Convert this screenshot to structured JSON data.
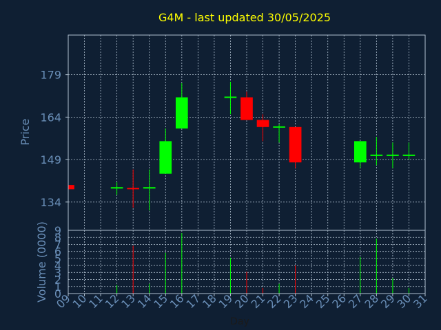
{
  "colors": {
    "background": "#0f1f33",
    "title": "#ffff00",
    "axis_text": "#6a8fb8",
    "frame": "#b0c0d0",
    "grid": "#b0c0d0",
    "up": "#00ff00",
    "down": "#ff0000"
  },
  "chart_data": {
    "type": "candlestick",
    "title": "G4M - last updated 30/05/2025",
    "xlabel": "Day",
    "ylabel": "Price",
    "volume_label": "Volume (0000)",
    "x_ticks": [
      "09",
      "10",
      "11",
      "12",
      "13",
      "14",
      "15",
      "16",
      "17",
      "18",
      "19",
      "20",
      "21",
      "22",
      "23",
      "24",
      "25",
      "26",
      "27",
      "28",
      "29",
      "30",
      "31"
    ],
    "price_ticks": [
      134,
      149,
      164,
      179
    ],
    "price_range": [
      124,
      193
    ],
    "volume_ticks": [
      0,
      1,
      2,
      3,
      4,
      5,
      6,
      7,
      8,
      9
    ],
    "volume_range": [
      0,
      9
    ],
    "grid": true,
    "candles": [
      {
        "day": "09",
        "open": 140,
        "close": 138.5,
        "high": 140,
        "low": 138.5,
        "volume": 0
      },
      {
        "day": "12",
        "open": 139,
        "close": 139,
        "high": 141,
        "low": 136.5,
        "volume": 1.2
      },
      {
        "day": "13",
        "open": 139,
        "close": 138.5,
        "high": 145.5,
        "low": 132,
        "volume": 6.8
      },
      {
        "day": "14",
        "open": 139,
        "close": 139,
        "high": 145.5,
        "low": 131,
        "volume": 1.4
      },
      {
        "day": "15",
        "open": 144,
        "close": 155.5,
        "high": 160,
        "low": 144,
        "volume": 5.8
      },
      {
        "day": "16",
        "open": 160,
        "close": 171,
        "high": 176,
        "low": 160,
        "volume": 8.6
      },
      {
        "day": "19",
        "open": 171,
        "close": 171,
        "high": 176.5,
        "low": 165,
        "volume": 5.1
      },
      {
        "day": "20",
        "open": 171,
        "close": 163,
        "high": 173,
        "low": 163,
        "volume": 3.1
      },
      {
        "day": "21",
        "open": 163,
        "close": 160.5,
        "high": 165,
        "low": 155.5,
        "volume": 0.8
      },
      {
        "day": "22",
        "open": 160.5,
        "close": 160.5,
        "high": 161.5,
        "low": 155,
        "volume": 1.4
      },
      {
        "day": "23",
        "open": 160.5,
        "close": 148,
        "high": 160.5,
        "low": 146,
        "volume": 4.0
      },
      {
        "day": "27",
        "open": 148,
        "close": 155.5,
        "high": 155.5,
        "low": 146,
        "volume": 5.2
      },
      {
        "day": "28",
        "open": 150.5,
        "close": 150.5,
        "high": 157,
        "low": 147,
        "volume": 7.8
      },
      {
        "day": "29",
        "open": 150.5,
        "close": 150.5,
        "high": 155,
        "low": 146,
        "volume": 2.2
      },
      {
        "day": "30",
        "open": 150.5,
        "close": 150.5,
        "high": 155,
        "low": 149,
        "volume": 0.8
      }
    ]
  }
}
